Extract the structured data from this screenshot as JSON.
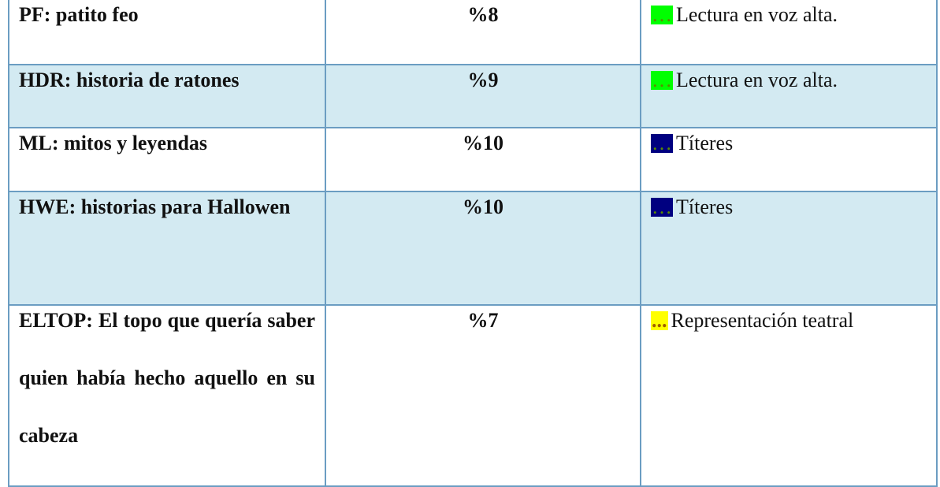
{
  "table": {
    "rows": [
      {
        "name": "PF: patito feo",
        "percent": "%8",
        "marker": "…",
        "marker_color": "#00ff00",
        "marker_text_color": "#5a8a00",
        "activity": "Lectura en voz alta.",
        "shaded": false,
        "height": 96
      },
      {
        "name": "HDR: historia de ratones",
        "percent": "%9",
        "marker": "…",
        "marker_color": "#00ff00",
        "marker_text_color": "#5a8a00",
        "activity": "Lectura en voz alta.",
        "shaded": true,
        "height": 80
      },
      {
        "name": "ML: mitos y leyendas",
        "percent": "%10",
        "marker": "…",
        "marker_color": "#000080",
        "marker_text_color": "#5a8a00",
        "activity": "Títeres",
        "shaded": false,
        "height": 81
      },
      {
        "name": "HWE: historias para Hallowen",
        "percent": "%10",
        "marker": "…",
        "marker_color": "#000080",
        "marker_text_color": "#5a8a00",
        "activity": "Títeres",
        "shaded": true,
        "height": 144
      },
      {
        "name": "ELTOP: El topo que quería saber quien había hecho aquello en su cabeza",
        "percent": "%7",
        "marker": "...",
        "marker_color": "#ffff00",
        "marker_text_color": "#a06000",
        "activity": "Representación teatral",
        "shaded": false,
        "height": 230
      }
    ]
  }
}
